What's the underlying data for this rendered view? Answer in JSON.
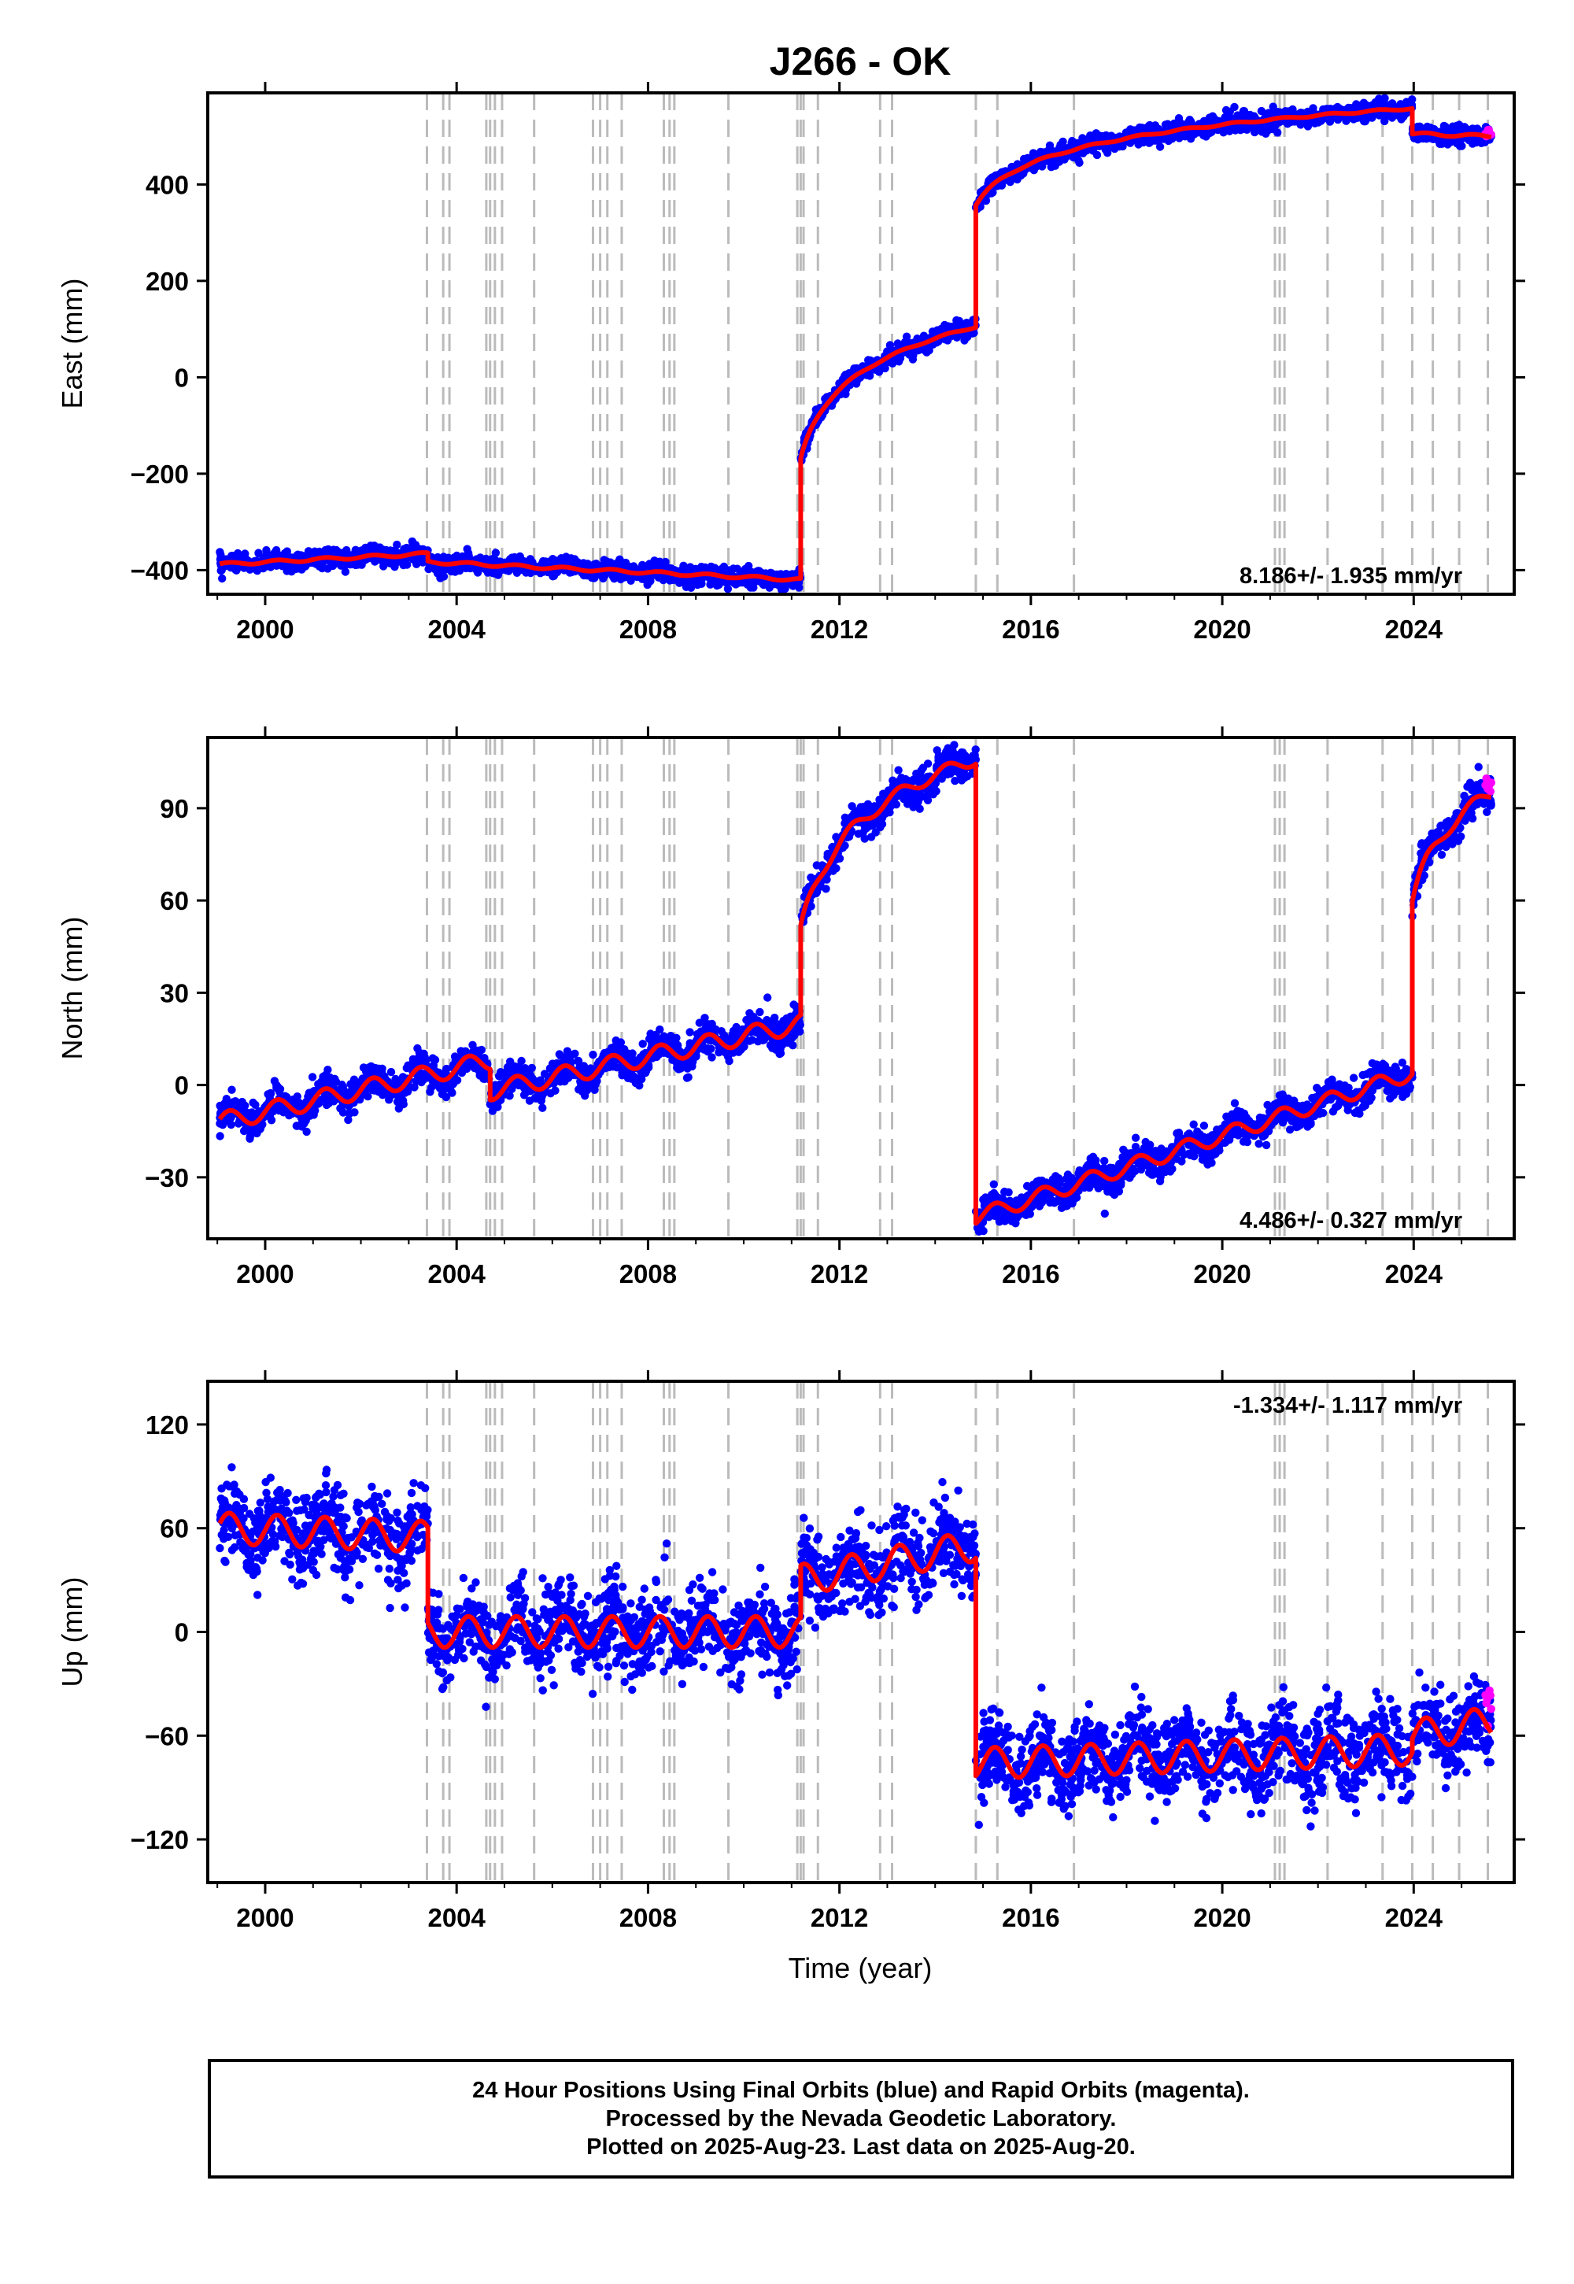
{
  "title": "J266 - OK",
  "colors": {
    "final_orbits": "#0000ff",
    "rapid_orbits": "#ff00ff",
    "model": "#ff0000",
    "event_lines": "#bbbbbb",
    "frame": "#000000"
  },
  "xlabel": "Time (year)",
  "caption": [
    "24 Hour Positions Using Final Orbits (blue) and Rapid Orbits (magenta).",
    "Processed by the Nevada Geodetic Laboratory.",
    "Plotted on 2025-Aug-23. Last data on 2025-Aug-20."
  ],
  "chart_data": [
    {
      "type": "scatter",
      "component": "east",
      "ylabel": "East (mm)",
      "rate": "8.186+/- 1.935 mm/yr",
      "xlim": [
        1998.8,
        2026.1
      ],
      "ylim": [
        -450,
        590
      ],
      "yticks": [
        400,
        200,
        0,
        -200,
        -400
      ],
      "yticklabels": [
        "400",
        "200",
        "0",
        "−200",
        "−400"
      ],
      "xticks": [
        2000,
        2004,
        2008,
        2012,
        2016,
        2020,
        2024
      ],
      "noise": 9,
      "segments": [
        {
          "t0": 1999.05,
          "t1": 2003.4,
          "y0": -388,
          "y1": -366,
          "seasonal": 3
        },
        {
          "t0": 2003.4,
          "t1": 2011.19,
          "y0": -383,
          "y1": -420,
          "seasonal": 3
        },
        {
          "t0": 2011.19,
          "t1": 2014.85,
          "y0": -170,
          "y1": 105,
          "seasonal": 2,
          "logtau": 0.25
        },
        {
          "t0": 2014.85,
          "t1": 2023.97,
          "y0": 358,
          "y1": 558,
          "seasonal": 2,
          "logtau": 0.4
        },
        {
          "t0": 2023.97,
          "t1": 2025.62,
          "y0": 505,
          "y1": 500,
          "seasonal": 3
        }
      ],
      "rapid": {
        "t0": 2025.5,
        "t1": 2025.62,
        "y": 505
      }
    },
    {
      "type": "scatter",
      "component": "north",
      "ylabel": "North (mm)",
      "rate": "4.486+/- 0.327 mm/yr",
      "xlim": [
        1998.8,
        2026.1
      ],
      "ylim": [
        -50,
        113
      ],
      "yticks": [
        90,
        60,
        30,
        0,
        -30
      ],
      "yticklabels": [
        "90",
        "60",
        "30",
        "0",
        "−30"
      ],
      "xticks": [
        2000,
        2004,
        2008,
        2012,
        2016,
        2020,
        2024
      ],
      "noise": 2.5,
      "segments": [
        {
          "t0": 1999.05,
          "t1": 2004.7,
          "y0": -12,
          "y1": 8,
          "seasonal": 3
        },
        {
          "t0": 2004.7,
          "t1": 2011.19,
          "y0": -2,
          "y1": 20,
          "seasonal": 3
        },
        {
          "t0": 2011.19,
          "t1": 2014.85,
          "y0": 50,
          "y1": 106,
          "seasonal": 2,
          "logtau": 0.3
        },
        {
          "t0": 2014.85,
          "t1": 2023.97,
          "y0": -43,
          "y1": 4,
          "seasonal": 2.5
        },
        {
          "t0": 2023.97,
          "t1": 2025.62,
          "y0": 60,
          "y1": 95,
          "seasonal": 2,
          "logtau": 0.3
        }
      ],
      "rapid": {
        "t0": 2025.5,
        "t1": 2025.62,
        "y": 97
      }
    },
    {
      "type": "scatter",
      "component": "up",
      "ylabel": "Up (mm)",
      "rate": "-1.334+/- 1.117 mm/yr",
      "xlim": [
        1998.8,
        2026.1
      ],
      "ylim": [
        -145,
        145
      ],
      "yticks": [
        120,
        60,
        0,
        -60,
        -120
      ],
      "yticklabels": [
        "120",
        "60",
        "0",
        "−60",
        "−120"
      ],
      "xticks": [
        2000,
        2004,
        2008,
        2012,
        2016,
        2020,
        2024
      ],
      "noise": 12,
      "segments": [
        {
          "t0": 1999.05,
          "t1": 2003.4,
          "y0": 60,
          "y1": 55,
          "seasonal": 9
        },
        {
          "t0": 2003.4,
          "t1": 2011.19,
          "y0": 0,
          "y1": 0,
          "seasonal": 9
        },
        {
          "t0": 2011.19,
          "t1": 2014.85,
          "y0": 30,
          "y1": 50,
          "seasonal": 9
        },
        {
          "t0": 2014.85,
          "t1": 2023.97,
          "y0": -76,
          "y1": -68,
          "seasonal": 9
        },
        {
          "t0": 2023.97,
          "t1": 2025.62,
          "y0": -60,
          "y1": -52,
          "seasonal": 9
        }
      ],
      "rapid": {
        "t0": 2025.5,
        "t1": 2025.62,
        "y": -45
      }
    }
  ],
  "events": [
    2003.38,
    2003.72,
    2003.85,
    2004.62,
    2004.7,
    2004.8,
    2004.95,
    2005.62,
    2006.85,
    2007.0,
    2007.15,
    2007.45,
    2008.33,
    2008.45,
    2008.55,
    2009.68,
    2011.12,
    2011.19,
    2011.25,
    2011.55,
    2012.85,
    2013.1,
    2014.85,
    2015.3,
    2016.9,
    2021.1,
    2021.2,
    2021.3,
    2022.2,
    2023.35,
    2023.97,
    2024.4,
    2024.95,
    2025.55
  ]
}
